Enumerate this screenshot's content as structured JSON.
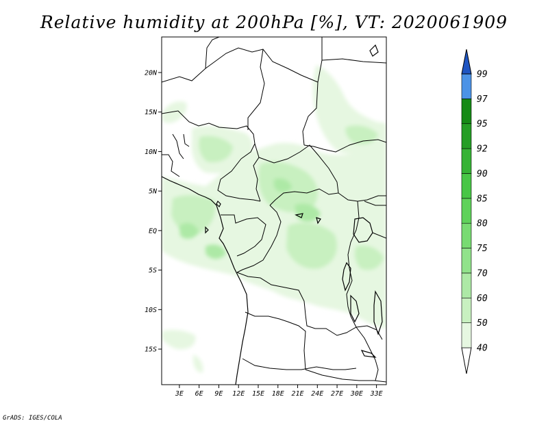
{
  "title": "Relative humidity at 200hPa [%], VT: 2020061909",
  "credit": "GrADS: IGES/COLA",
  "map": {
    "lat_labels": [
      "20N",
      "15N",
      "10N",
      "5N",
      "EQ",
      "5S",
      "10S",
      "15S"
    ],
    "lon_labels": [
      "3E",
      "6E",
      "9E",
      "12E",
      "15E",
      "18E",
      "21E",
      "24E",
      "27E",
      "30E",
      "33E"
    ],
    "lat_range": [
      -19.5,
      24.5
    ],
    "lon_range": [
      0.3,
      34.5
    ]
  },
  "colorbar": {
    "labels": [
      "40",
      "50",
      "60",
      "70",
      "75",
      "80",
      "85",
      "90",
      "92",
      "95",
      "97",
      "99"
    ],
    "colors": [
      "#e6f7e1",
      "#c8f0c0",
      "#ade9a6",
      "#91e28b",
      "#78db72",
      "#5fd25a",
      "#48c646",
      "#36b335",
      "#259e25",
      "#168a16",
      "#4c93e6",
      "#2a6fd6",
      "#1f55c2"
    ]
  },
  "field_colors": {
    "c40": "#e6f7e1",
    "c50": "#c8f0c0",
    "c60": "#ade9a6"
  }
}
